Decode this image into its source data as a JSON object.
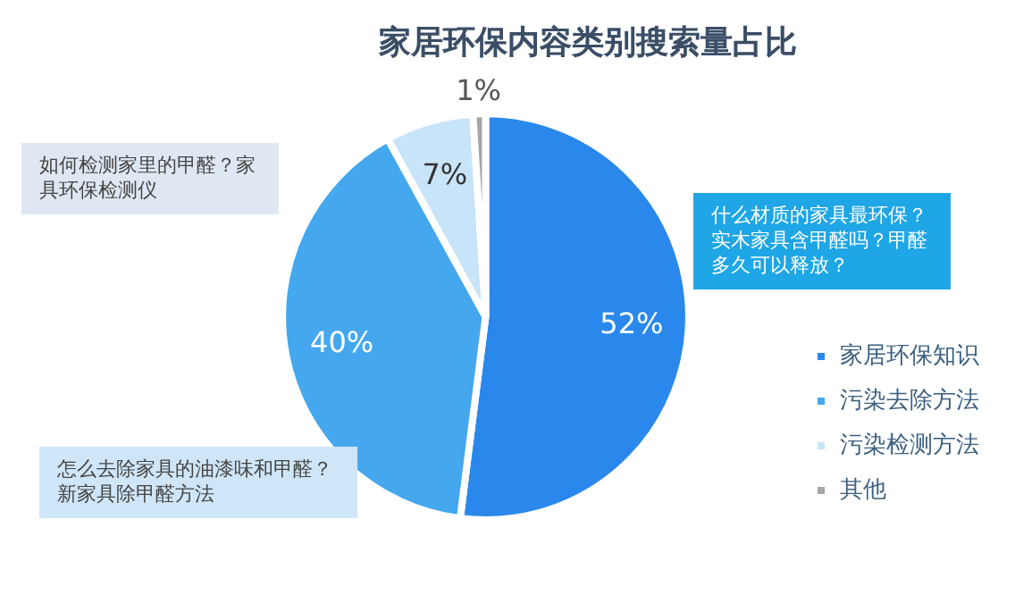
{
  "chart_data": {
    "type": "pie",
    "title": "家居环保内容类别搜索量占比",
    "categories": [
      "家居环保知识",
      "污染去除方法",
      "污染检测方法",
      "其他"
    ],
    "values": [
      52,
      40,
      7,
      1
    ],
    "colors": [
      "#2a88ec",
      "#45a8ee",
      "#c8e4f8",
      "#a6a6a6"
    ],
    "value_labels": [
      "52%",
      "40%",
      "7%",
      "1%"
    ],
    "legend": "bottom right",
    "annotations": [
      "什么材质的家具最环保？实木家具含甲醛吗？甲醛多久可以释放？",
      "如何检测家里的甲醛？家具环保检测仪",
      "怎么去除家具的油漆味和甲醛？新家具除甲醛方法"
    ]
  }
}
